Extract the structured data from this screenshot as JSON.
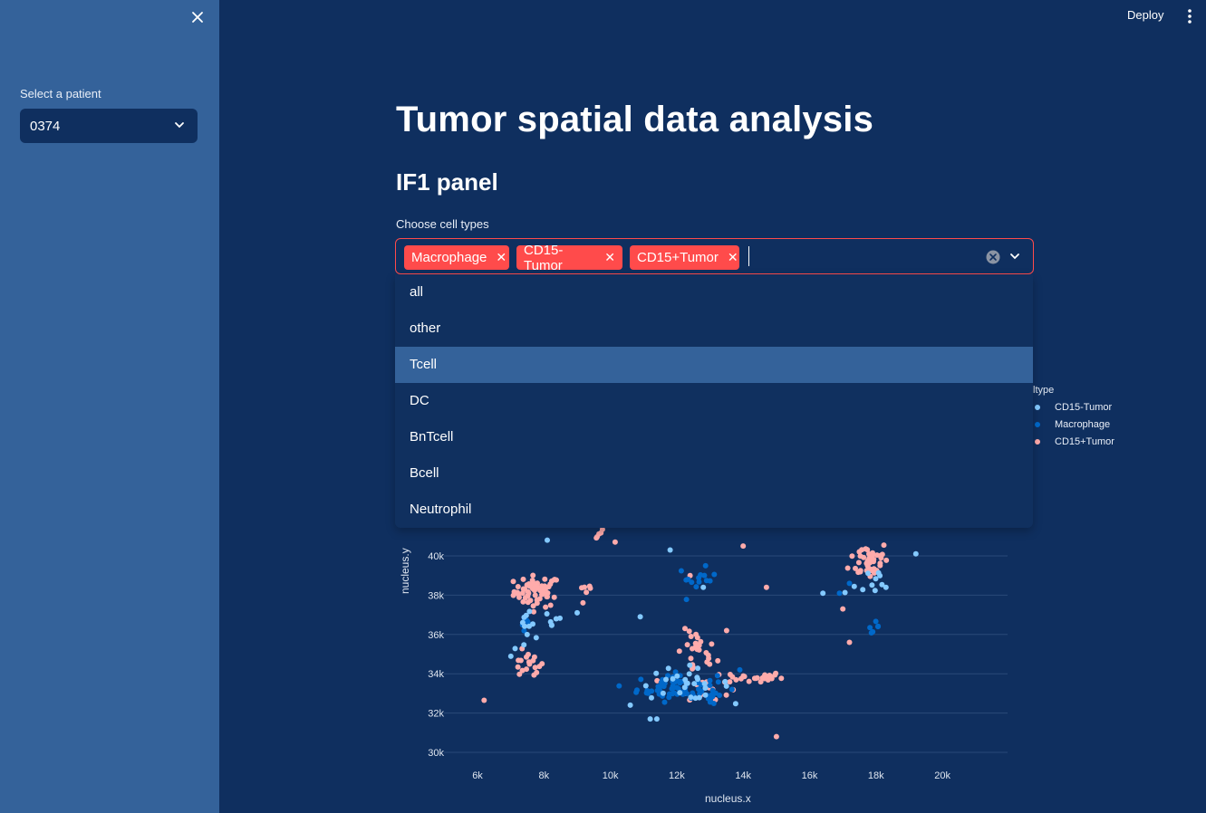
{
  "sidebar": {
    "select_label": "Select a patient",
    "selected_patient": "0374"
  },
  "topbar": {
    "deploy_label": "Deploy"
  },
  "main": {
    "title": "Tumor spatial data analysis",
    "panel_title": "IF1 panel",
    "cell_type_label": "Choose cell types",
    "selected_chips": [
      "Macrophage",
      "CD15-Tumor",
      "CD15+Tumor"
    ],
    "dropdown_options": [
      "all",
      "other",
      "Tcell",
      "DC",
      "BnTcell",
      "Bcell",
      "Neutrophil"
    ],
    "highlighted_option": "Tcell"
  },
  "legend": {
    "title": "ltype",
    "items": [
      {
        "label": "CD15-Tumor",
        "color": "#83c9ff"
      },
      {
        "label": "Macrophage",
        "color": "#0068c9"
      },
      {
        "label": "CD15+Tumor",
        "color": "#ffabab"
      }
    ]
  },
  "chart_data": {
    "type": "scatter",
    "xlabel": "nucleus.x",
    "ylabel": "nucleus.y",
    "x_ticks": [
      "6k",
      "8k",
      "10k",
      "12k",
      "14k",
      "16k",
      "18k",
      "20k"
    ],
    "y_ticks": [
      "30k",
      "32k",
      "34k",
      "36k",
      "38k",
      "40k"
    ],
    "xlim": [
      5300,
      22000
    ],
    "ylim": [
      29700,
      41300
    ],
    "grid": true,
    "series": [
      {
        "name": "CD15+Tumor",
        "color": "#ffabab",
        "clusters": [
          {
            "cx": 7800,
            "cy": 38200,
            "sx": 350,
            "sy": 400,
            "n": 60
          },
          {
            "cx": 7500,
            "cy": 34400,
            "sx": 250,
            "sy": 350,
            "n": 18
          },
          {
            "cx": 12600,
            "cy": 35000,
            "sx": 300,
            "sy": 600,
            "n": 25
          },
          {
            "cx": 14300,
            "cy": 33800,
            "sx": 450,
            "sy": 150,
            "n": 25
          },
          {
            "cx": 17800,
            "cy": 39800,
            "sx": 300,
            "sy": 500,
            "n": 45
          },
          {
            "cx": 12800,
            "cy": 33300,
            "sx": 400,
            "sy": 300,
            "n": 14
          },
          {
            "cx": 9300,
            "cy": 38300,
            "sx": 120,
            "sy": 300,
            "n": 6
          },
          {
            "cx": 9600,
            "cy": 41000,
            "sx": 200,
            "sy": 150,
            "n": 6
          }
        ],
        "singles": [
          [
            6200,
            32650
          ],
          [
            15000,
            30800
          ],
          [
            14700,
            38400
          ],
          [
            14000,
            40500
          ],
          [
            17200,
            35600
          ],
          [
            13500,
            36200
          ],
          [
            12400,
            39000
          ],
          [
            17000,
            37300
          ]
        ]
      },
      {
        "name": "Macrophage",
        "color": "#0068c9",
        "clusters": [
          {
            "cx": 12000,
            "cy": 33300,
            "sx": 600,
            "sy": 350,
            "n": 60
          },
          {
            "cx": 12600,
            "cy": 38800,
            "sx": 300,
            "sy": 300,
            "n": 14
          },
          {
            "cx": 13100,
            "cy": 32800,
            "sx": 200,
            "sy": 250,
            "n": 10
          },
          {
            "cx": 17900,
            "cy": 36400,
            "sx": 100,
            "sy": 120,
            "n": 6
          },
          {
            "cx": 7500,
            "cy": 36500,
            "sx": 100,
            "sy": 150,
            "n": 5
          }
        ],
        "singles": [
          [
            17200,
            38600
          ],
          [
            16900,
            38100
          ],
          [
            13900,
            34200
          ]
        ]
      },
      {
        "name": "CD15-Tumor",
        "color": "#83c9ff",
        "clusters": [
          {
            "cx": 12200,
            "cy": 33500,
            "sx": 700,
            "sy": 400,
            "n": 28
          },
          {
            "cx": 7500,
            "cy": 36000,
            "sx": 250,
            "sy": 600,
            "n": 12
          },
          {
            "cx": 17700,
            "cy": 38500,
            "sx": 400,
            "sy": 600,
            "n": 10
          },
          {
            "cx": 8300,
            "cy": 36800,
            "sx": 150,
            "sy": 300,
            "n": 6
          }
        ],
        "singles": [
          [
            10600,
            32400
          ],
          [
            11200,
            31700
          ],
          [
            11400,
            31700
          ],
          [
            8100,
            40800
          ],
          [
            9000,
            37100
          ],
          [
            19200,
            40100
          ],
          [
            16400,
            38100
          ],
          [
            18300,
            38400
          ],
          [
            12800,
            38400
          ],
          [
            11800,
            40300
          ],
          [
            10900,
            36900
          ]
        ]
      }
    ]
  }
}
